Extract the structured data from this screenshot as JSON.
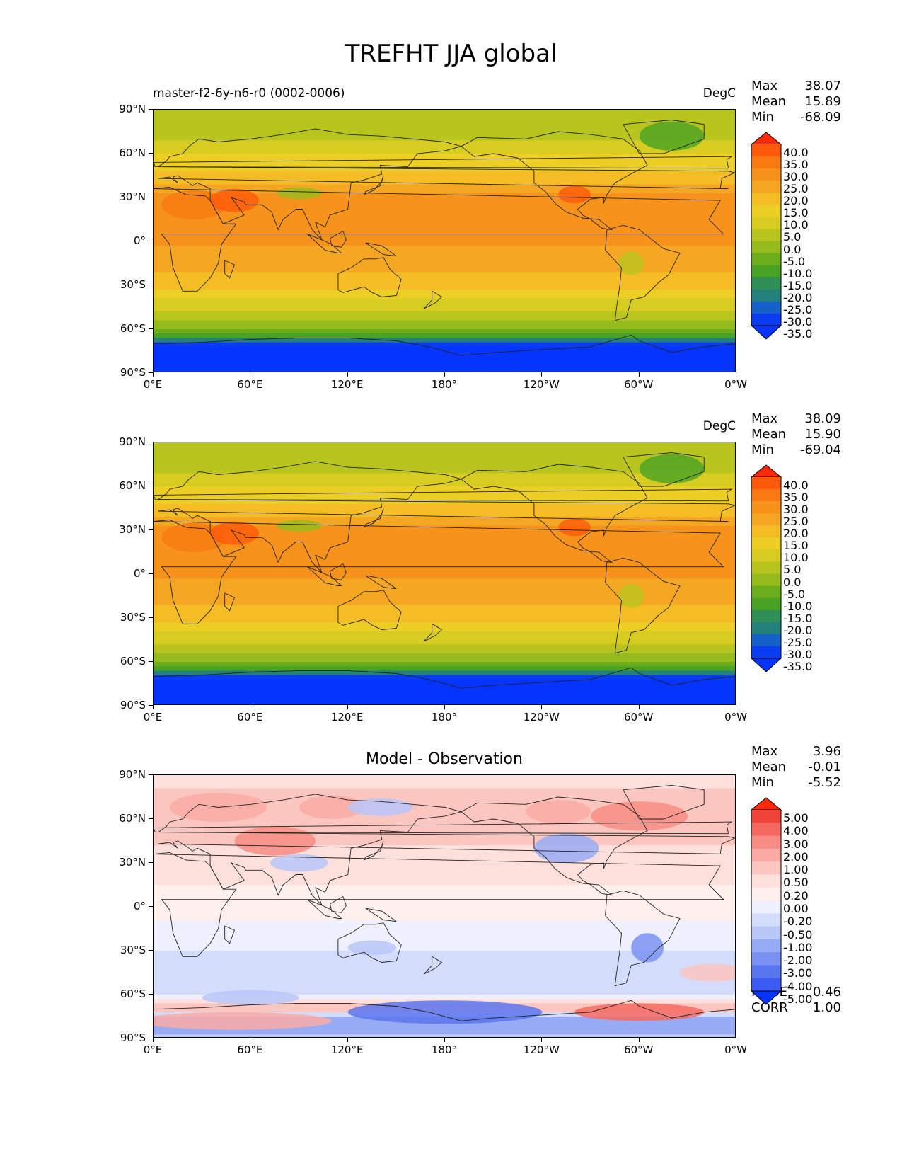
{
  "title": "TREFHT JJA global",
  "xticks": [
    "0°E",
    "60°E",
    "120°E",
    "180°",
    "120°W",
    "60°W",
    "0°W"
  ],
  "yticks": [
    "90°N",
    "60°N",
    "30°N",
    "0°",
    "30°S",
    "60°S",
    "90°S"
  ],
  "panels": [
    {
      "left_title": "master-f2-6y-n6-r0 (0002-0006)",
      "center_title": "",
      "units": "DegC",
      "stats": [
        {
          "k": "Max",
          "v": "38.07"
        },
        {
          "k": "Mean",
          "v": "15.89"
        },
        {
          "k": "Min",
          "v": "-68.09"
        }
      ],
      "colorbar": {
        "labels": [
          "40.0",
          "35.0",
          "30.0",
          "25.0",
          "20.0",
          "15.0",
          "10.0",
          "5.0",
          "0.0",
          "-5.0",
          "-10.0",
          "-15.0",
          "-20.0",
          "-25.0",
          "-30.0",
          "-35.0"
        ],
        "colors": [
          "#ff2a0a",
          "#ff5a0a",
          "#f87a10",
          "#f7931a",
          "#f5a623",
          "#f4bd25",
          "#ecce24",
          "#d7cd22",
          "#b9c51f",
          "#95bb1c",
          "#6cad1c",
          "#48a223",
          "#2e8f57",
          "#24807a",
          "#1462c8",
          "#0a3cf2",
          "#0533ff"
        ]
      },
      "footer_stats": []
    },
    {
      "left_title": "",
      "center_title": "",
      "units": "DegC",
      "stats": [
        {
          "k": "Max",
          "v": "38.09"
        },
        {
          "k": "Mean",
          "v": "15.90"
        },
        {
          "k": "Min",
          "v": "-69.04"
        }
      ],
      "colorbar": {
        "labels": [
          "40.0",
          "35.0",
          "30.0",
          "25.0",
          "20.0",
          "15.0",
          "10.0",
          "5.0",
          "0.0",
          "-5.0",
          "-10.0",
          "-15.0",
          "-20.0",
          "-25.0",
          "-30.0",
          "-35.0"
        ],
        "colors": [
          "#ff2a0a",
          "#ff5a0a",
          "#f87a10",
          "#f7931a",
          "#f5a623",
          "#f4bd25",
          "#ecce24",
          "#d7cd22",
          "#b9c51f",
          "#95bb1c",
          "#6cad1c",
          "#48a223",
          "#2e8f57",
          "#24807a",
          "#1462c8",
          "#0a3cf2",
          "#0533ff"
        ]
      },
      "footer_stats": []
    },
    {
      "left_title": "",
      "center_title": "Model - Observation",
      "units": "",
      "stats": [
        {
          "k": "Max",
          "v": "3.96"
        },
        {
          "k": "Mean",
          "v": "-0.01"
        },
        {
          "k": "Min",
          "v": "-5.52"
        }
      ],
      "colorbar": {
        "labels": [
          "5.00",
          "4.00",
          "3.00",
          "2.00",
          "1.00",
          "0.50",
          "0.20",
          "0.00",
          "-0.20",
          "-0.50",
          "-1.00",
          "-2.00",
          "-3.00",
          "-4.00",
          "-5.00"
        ],
        "colors": [
          "#ff2a0a",
          "#f0453a",
          "#f46a60",
          "#f78c84",
          "#f9aaa4",
          "#fbc6c0",
          "#fde0dc",
          "#fff0ec",
          "#eef0fd",
          "#d4dcfb",
          "#b8c6f8",
          "#98acf5",
          "#7a92f2",
          "#5a76ef",
          "#3a5cf2",
          "#0533ff"
        ]
      },
      "footer_stats": [
        {
          "k": "RMSE",
          "v": "0.46"
        },
        {
          "k": "CORR",
          "v": "1.00"
        }
      ]
    }
  ],
  "chart_data": [
    {
      "type": "heatmap",
      "variable": "TREFHT",
      "season": "JJA",
      "xlabel": "",
      "ylabel": "",
      "xlim": [
        0,
        360
      ],
      "ylim": [
        -90,
        90
      ],
      "zonal_profile": {
        "lat": [
          90,
          75,
          60,
          45,
          30,
          15,
          0,
          -15,
          -30,
          -45,
          -55,
          -65,
          -72,
          -90
        ],
        "value": [
          0,
          2,
          10,
          17,
          26,
          27,
          26,
          22,
          16,
          7,
          0,
          -12,
          -35,
          -50
        ]
      },
      "color_levels": [
        -35,
        -30,
        -25,
        -20,
        -15,
        -10,
        -5,
        0,
        5,
        10,
        15,
        20,
        25,
        30,
        35,
        40
      ],
      "units": "DegC"
    },
    {
      "type": "heatmap",
      "variable": "TREFHT",
      "season": "JJA",
      "xlabel": "",
      "ylabel": "",
      "xlim": [
        0,
        360
      ],
      "ylim": [
        -90,
        90
      ],
      "zonal_profile": {
        "lat": [
          90,
          75,
          60,
          45,
          30,
          15,
          0,
          -15,
          -30,
          -45,
          -55,
          -65,
          -72,
          -90
        ],
        "value": [
          0,
          2,
          10,
          17,
          26,
          27,
          26,
          22,
          16,
          7,
          0,
          -12,
          -35,
          -50
        ]
      },
      "color_levels": [
        -35,
        -30,
        -25,
        -20,
        -15,
        -10,
        -5,
        0,
        5,
        10,
        15,
        20,
        25,
        30,
        35,
        40
      ],
      "units": "DegC"
    },
    {
      "type": "heatmap",
      "variable": "TREFHT",
      "season": "JJA",
      "xlabel": "",
      "ylabel": "",
      "xlim": [
        0,
        360
      ],
      "ylim": [
        -90,
        90
      ],
      "zonal_profile": {
        "lat": [
          90,
          70,
          50,
          30,
          0,
          -30,
          -60,
          -70,
          -78,
          -90
        ],
        "value": [
          0.3,
          0.8,
          0.6,
          0.3,
          0.1,
          -0.2,
          -0.4,
          1.0,
          -2.0,
          -0.5
        ]
      },
      "color_levels": [
        -5,
        -4,
        -3,
        -2,
        -1,
        -0.5,
        -0.2,
        0,
        0.2,
        0.5,
        1,
        2,
        3,
        4,
        5
      ]
    }
  ]
}
